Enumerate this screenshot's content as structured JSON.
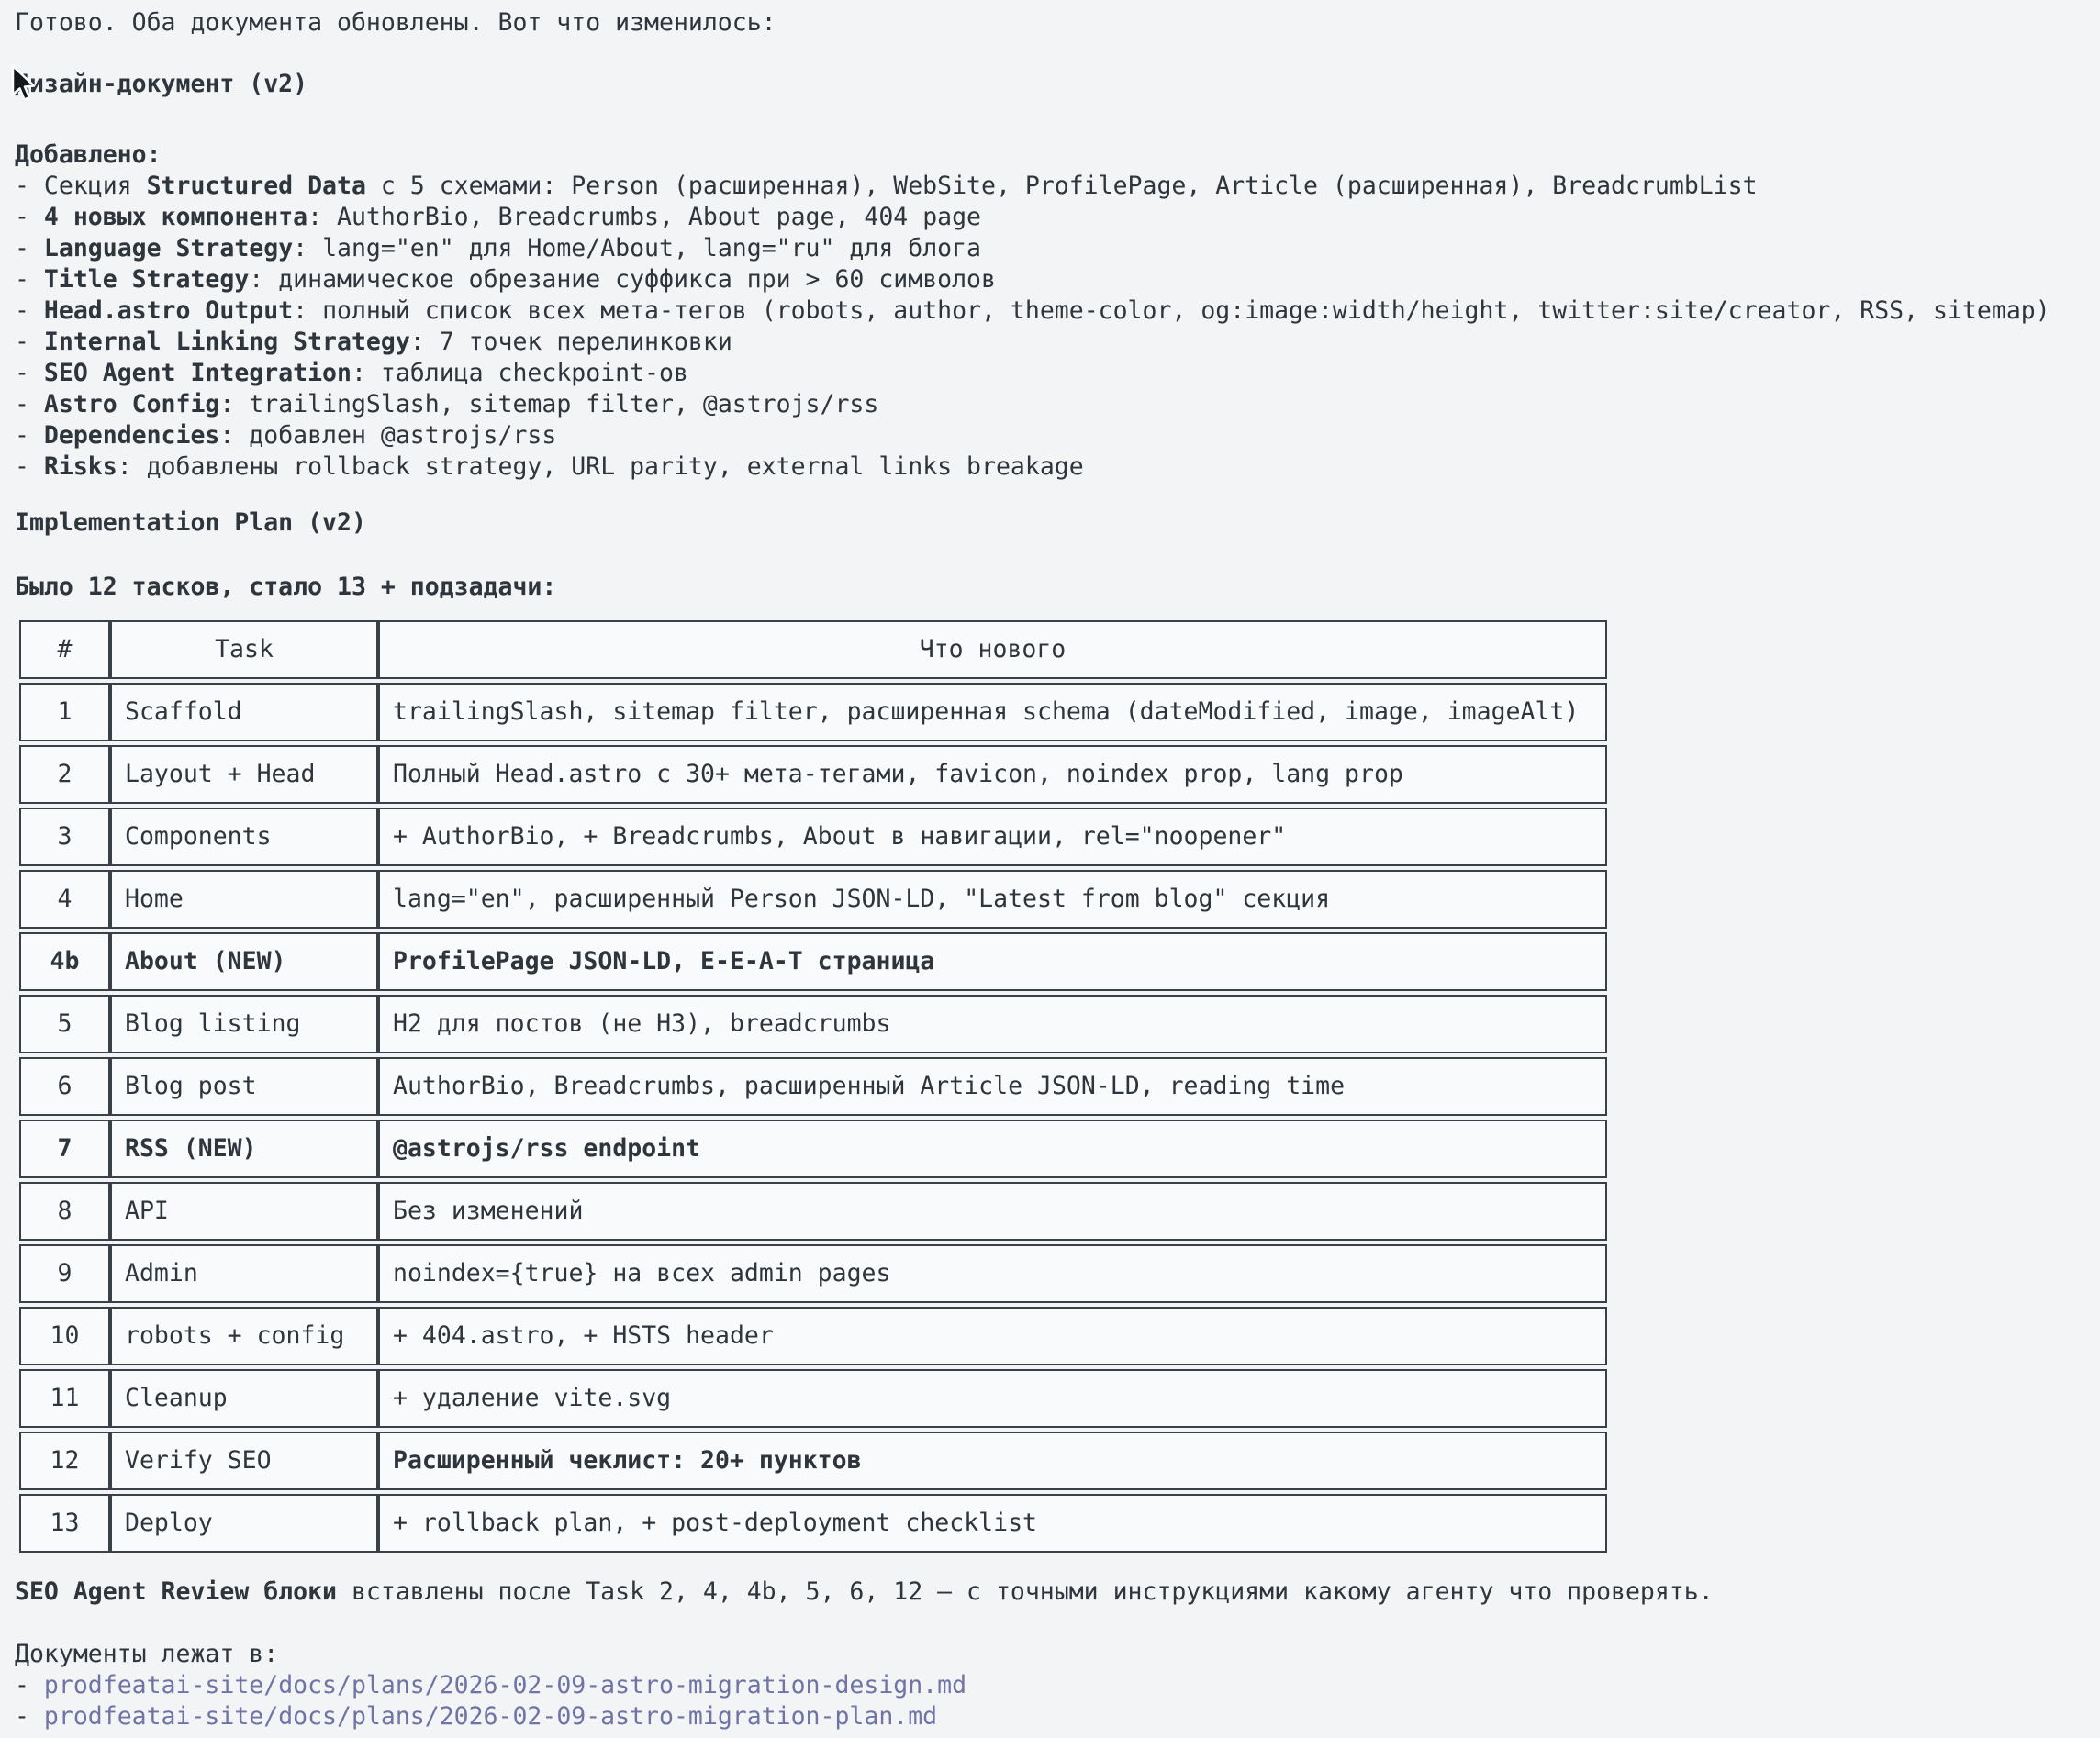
{
  "intro": "Готово. Оба документа обновлены. Вот что изменилось:",
  "design_doc": {
    "title": "Дизайн-документ (v2)",
    "added_label": "Добавлено:",
    "bullets": [
      {
        "pre": "- Секция ",
        "bold": "Structured Data",
        "rest": " с 5 схемами: Person (расширенная), WebSite, ProfilePage, Article (расширенная), BreadcrumbList"
      },
      {
        "pre": "- ",
        "bold": "4 новых компонента",
        "rest": ": AuthorBio, Breadcrumbs, About page, 404 page"
      },
      {
        "pre": "- ",
        "bold": "Language Strategy",
        "rest": ": lang=\"en\" для Home/About, lang=\"ru\" для блога"
      },
      {
        "pre": "- ",
        "bold": "Title Strategy",
        "rest": ": динамическое обрезание суффикса при > 60 символов"
      },
      {
        "pre": "- ",
        "bold": "Head.astro Output",
        "rest": ": полный список всех мета-тегов (robots, author, theme-color, og:image:width/height, twitter:site/creator, RSS, sitemap)"
      },
      {
        "pre": "- ",
        "bold": "Internal Linking Strategy",
        "rest": ": 7 точек перелинковки"
      },
      {
        "pre": "- ",
        "bold": "SEO Agent Integration",
        "rest": ": таблица checkpoint-ов"
      },
      {
        "pre": "- ",
        "bold": "Astro Config",
        "rest": ": trailingSlash, sitemap filter, @astrojs/rss"
      },
      {
        "pre": "- ",
        "bold": "Dependencies",
        "rest": ": добавлен @astrojs/rss"
      },
      {
        "pre": "- ",
        "bold": "Risks",
        "rest": ": добавлены rollback strategy, URL parity, external links breakage"
      }
    ]
  },
  "implementation_plan": {
    "title": "Implementation Plan (v2)",
    "summary": "Было 12 тасков, стало 13 + подзадачи:",
    "table": {
      "headers": [
        "#",
        "Task",
        "Что нового"
      ],
      "rows": [
        {
          "num": "1",
          "task": "Scaffold",
          "desc": "trailingSlash, sitemap filter, расширенная schema (dateModified, image, imageAlt)",
          "row_bold": false,
          "desc_bold": false
        },
        {
          "num": "2",
          "task": "Layout + Head",
          "desc": "Полный Head.astro с 30+ мета-тегами, favicon, noindex prop, lang prop",
          "row_bold": false,
          "desc_bold": false
        },
        {
          "num": "3",
          "task": "Components",
          "desc": "+ AuthorBio, + Breadcrumbs, About в навигации, rel=\"noopener\"",
          "row_bold": false,
          "desc_bold": false
        },
        {
          "num": "4",
          "task": "Home",
          "desc": "lang=\"en\", расширенный Person JSON-LD, \"Latest from blog\" секция",
          "row_bold": false,
          "desc_bold": false
        },
        {
          "num": "4b",
          "task": "About (NEW)",
          "desc": "ProfilePage JSON-LD, E-E-A-T страница",
          "row_bold": true,
          "desc_bold": false
        },
        {
          "num": "5",
          "task": "Blog listing",
          "desc": "H2 для постов (не H3), breadcrumbs",
          "row_bold": false,
          "desc_bold": false
        },
        {
          "num": "6",
          "task": "Blog post",
          "desc": "AuthorBio, Breadcrumbs, расширенный Article JSON-LD, reading time",
          "row_bold": false,
          "desc_bold": false
        },
        {
          "num": "7",
          "task": "RSS (NEW)",
          "desc": "@astrojs/rss endpoint",
          "row_bold": true,
          "desc_bold": false
        },
        {
          "num": "8",
          "task": "API",
          "desc": "Без изменений",
          "row_bold": false,
          "desc_bold": false
        },
        {
          "num": "9",
          "task": "Admin",
          "desc": "noindex={true} на всех admin pages",
          "row_bold": false,
          "desc_bold": false
        },
        {
          "num": "10",
          "task": "robots + config",
          "desc": "+ 404.astro, + HSTS header",
          "row_bold": false,
          "desc_bold": false
        },
        {
          "num": "11",
          "task": "Cleanup",
          "desc": "+ удаление vite.svg",
          "row_bold": false,
          "desc_bold": false
        },
        {
          "num": "12",
          "task": "Verify SEO",
          "desc": "Расширенный чеклист: 20+ пунктов",
          "row_bold": false,
          "desc_bold": true
        },
        {
          "num": "13",
          "task": "Deploy",
          "desc": "+ rollback plan, + post-deployment checklist",
          "row_bold": false,
          "desc_bold": false
        }
      ]
    }
  },
  "seo_review": {
    "bold": "SEO Agent Review блоки",
    "rest": " вставлены после Task 2, 4, 4b, 5, 6, 12 — с точными инструкциями какому агенту что проверять."
  },
  "docs": {
    "label": "Документы лежат в:",
    "items": [
      {
        "prefix": "- ",
        "path": "prodfeatai-site/docs/plans/2026-02-09-astro-migration-design.md"
      },
      {
        "prefix": "- ",
        "path": "prodfeatai-site/docs/plans/2026-02-09-astro-migration-plan.md"
      }
    ]
  },
  "colors": {
    "background": "#f2f4f6",
    "cell_background": "#f8fafb",
    "text": "#2f353c",
    "table_border": "#394049",
    "link": "#7074a4"
  }
}
